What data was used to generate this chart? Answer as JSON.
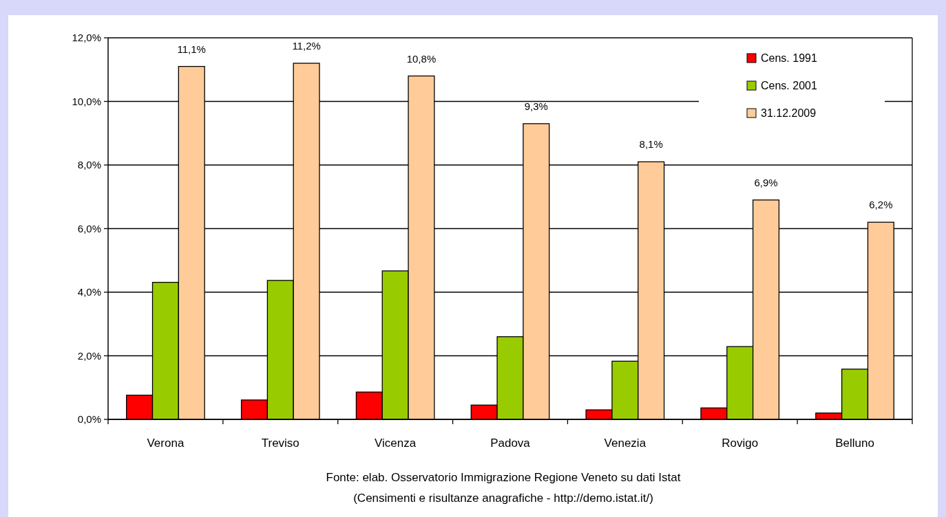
{
  "chart_data": {
    "type": "bar",
    "categories": [
      "Verona",
      "Treviso",
      "Vicenza",
      "Padova",
      "Venezia",
      "Rovigo",
      "Belluno"
    ],
    "series": [
      {
        "name": "Cens. 1991",
        "color": "#ff0000",
        "values": [
          0.76,
          0.61,
          0.86,
          0.45,
          0.3,
          0.36,
          0.2
        ]
      },
      {
        "name": "Cens. 2001",
        "color": "#99cc00",
        "values": [
          4.31,
          4.37,
          4.67,
          2.6,
          1.83,
          2.29,
          1.58
        ]
      },
      {
        "name": "31.12.2009",
        "color": "#ffcc99",
        "values": [
          11.1,
          11.2,
          10.8,
          9.3,
          8.1,
          6.9,
          6.2
        ],
        "value_labels": [
          "11,1%",
          "11,2%",
          "10,8%",
          "9,3%",
          "8,1%",
          "6,9%",
          "6,2%"
        ]
      }
    ],
    "ylim": [
      0,
      12
    ],
    "yticks": [
      {
        "value": 0,
        "label": "0,0%"
      },
      {
        "value": 2,
        "label": "2,0%"
      },
      {
        "value": 4,
        "label": "4,0%"
      },
      {
        "value": 6,
        "label": "6,0%"
      },
      {
        "value": 8,
        "label": "8,0%"
      },
      {
        "value": 10,
        "label": "10,0%"
      },
      {
        "value": 12,
        "label": "12,0%"
      }
    ],
    "grid": "y",
    "legend": "top right",
    "annotations": [
      "Fonte: elab. Osservatorio Immigrazione Regione Veneto su dati Istat",
      "(Censimenti e risultanze anagrafiche - http://demo.istat.it/)"
    ]
  }
}
